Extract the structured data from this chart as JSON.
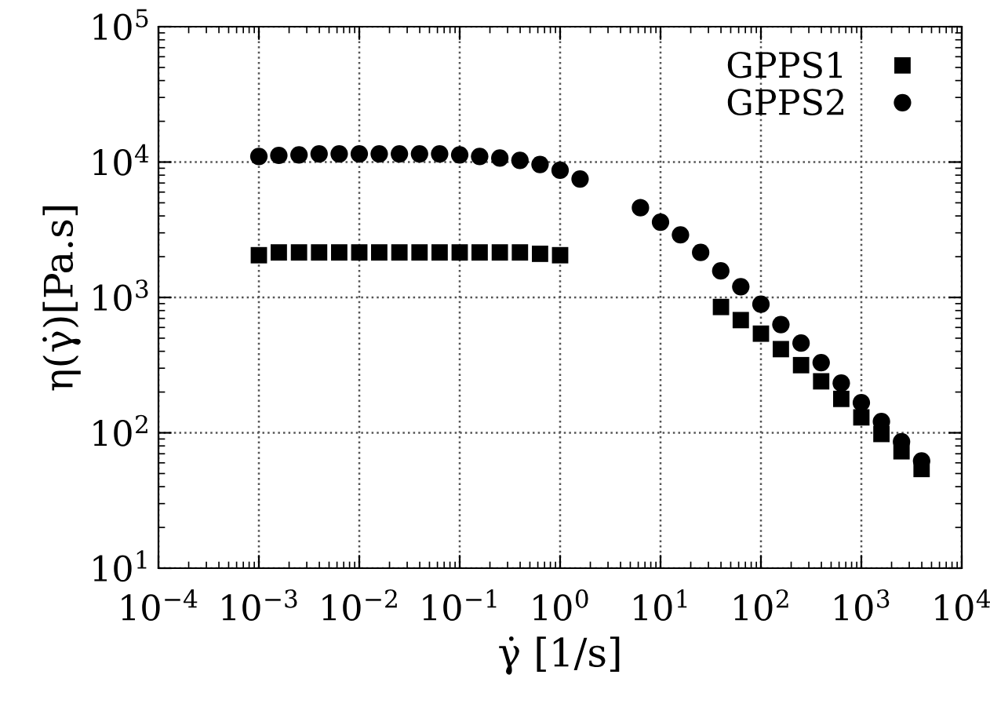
{
  "chart_data": {
    "type": "scatter",
    "xlabel": "γ̇ [1/s]",
    "ylabel": "η(γ̇)[Pa.s]",
    "log": "xy",
    "grid": true,
    "legend": "top right",
    "xlim": [
      0.0001,
      10000
    ],
    "ylim": [
      10,
      100000
    ],
    "xticks": [
      {
        "value": 0.0001,
        "label": "10$^{−4}$"
      },
      {
        "value": 0.001,
        "label": "10$^{−3}$"
      },
      {
        "value": 0.01,
        "label": "10$^{−2}$"
      },
      {
        "value": 0.1,
        "label": "10$^{−1}$"
      },
      {
        "value": 1,
        "label": "10$^{0}$"
      },
      {
        "value": 10,
        "label": "10$^{1}$"
      },
      {
        "value": 100,
        "label": "10$^{2}$"
      },
      {
        "value": 1000,
        "label": "10$^{3}$"
      },
      {
        "value": 10000,
        "label": "10$^{4}$"
      }
    ],
    "yticks": [
      {
        "value": 10,
        "label": "10$^{1}$"
      },
      {
        "value": 100,
        "label": "10$^{2}$"
      },
      {
        "value": 1000,
        "label": "10$^{3}$"
      },
      {
        "value": 10000,
        "label": "10$^{4}$"
      },
      {
        "value": 100000,
        "label": "10$^{5}$"
      }
    ],
    "series": [
      {
        "name": "GPPS1",
        "color": "#000000",
        "marker": "square",
        "x": [
          0.001,
          0.00158,
          0.00251,
          0.00398,
          0.00631,
          0.01,
          0.0158,
          0.0251,
          0.0398,
          0.0631,
          0.1,
          0.158,
          0.251,
          0.398,
          0.631,
          1,
          40,
          63,
          100,
          158,
          251,
          398,
          631,
          1000,
          1585,
          2512,
          3981
        ],
        "values": [
          2050,
          2150,
          2150,
          2150,
          2150,
          2150,
          2150,
          2150,
          2150,
          2150,
          2150,
          2150,
          2150,
          2150,
          2100,
          2050,
          850,
          680,
          540,
          415,
          316,
          240,
          178,
          130,
          98,
          73,
          54
        ]
      },
      {
        "name": "GPPS2",
        "color": "#000000",
        "marker": "circle",
        "x": [
          0.001,
          0.00158,
          0.00251,
          0.00398,
          0.00631,
          0.01,
          0.0158,
          0.0251,
          0.0398,
          0.0631,
          0.1,
          0.158,
          0.251,
          0.398,
          0.631,
          1,
          1.58,
          6.31,
          10,
          15.8,
          25.1,
          39.8,
          63,
          100,
          158,
          251,
          398,
          631,
          1000,
          1585,
          2512,
          3981
        ],
        "values": [
          11000,
          11200,
          11300,
          11500,
          11500,
          11500,
          11500,
          11500,
          11500,
          11500,
          11300,
          11000,
          10700,
          10300,
          9600,
          8700,
          7500,
          4600,
          3600,
          2900,
          2150,
          1570,
          1200,
          890,
          630,
          460,
          330,
          233,
          167,
          121,
          86,
          62
        ]
      }
    ]
  }
}
